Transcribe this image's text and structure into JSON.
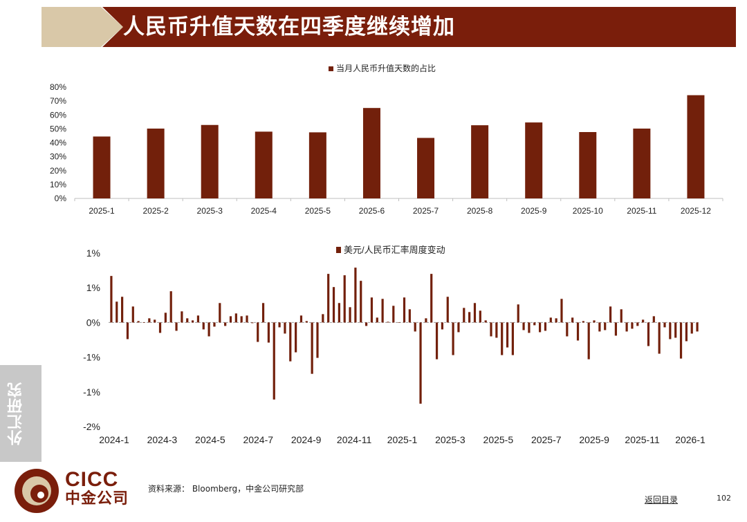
{
  "header": {
    "title": "人民币升值天数在四季度继续增加"
  },
  "colors": {
    "bar": "#72200b",
    "header": "#7a1e0b",
    "chevron": "#d9c8a8",
    "axis": "#bfbfbf"
  },
  "chart_data": [
    {
      "type": "bar",
      "title": "",
      "legend": {
        "label": "当月人民币升值天数的占比",
        "position": "top"
      },
      "categories": [
        "2025-1",
        "2025-2",
        "2025-3",
        "2025-4",
        "2025-5",
        "2025-6",
        "2025-7",
        "2025-8",
        "2025-9",
        "2025-10",
        "2025-11",
        "2025-12"
      ],
      "series": [
        {
          "name": "当月人民币升值天数的占比",
          "values": [
            44.5,
            50.2,
            52.8,
            48.0,
            47.5,
            65.0,
            43.5,
            52.6,
            54.6,
            47.7,
            50.2,
            74.2
          ]
        }
      ],
      "yticks": [
        "0%",
        "10%",
        "20%",
        "30%",
        "40%",
        "50%",
        "60%",
        "70%",
        "80%"
      ],
      "ylim": [
        0,
        80
      ],
      "unit": "%"
    },
    {
      "type": "bar",
      "title": "",
      "legend": {
        "label": "美元/人民币汇率周度变动",
        "position": "top"
      },
      "xticks": [
        "2024-1",
        "2024-3",
        "2024-5",
        "2024-7",
        "2024-9",
        "2024-11",
        "2025-1",
        "2025-3",
        "2025-5",
        "2025-7",
        "2025-9",
        "2025-11",
        "2026-1"
      ],
      "yticks": [
        "1%",
        "1%",
        "0%",
        "-1%",
        "-1%",
        "-2%"
      ],
      "ylim": [
        -1.5,
        1.0
      ],
      "unit": "%",
      "series": [
        {
          "name": "美元/人民币汇率周度变动",
          "values": [
            0.67,
            0.3,
            0.37,
            -0.24,
            0.23,
            0.02,
            0.0,
            0.06,
            0.04,
            -0.15,
            0.14,
            0.45,
            -0.12,
            0.16,
            0.06,
            0.03,
            0.1,
            -0.1,
            -0.2,
            -0.06,
            0.28,
            -0.05,
            0.09,
            0.13,
            0.09,
            0.1,
            -0.01,
            -0.28,
            0.28,
            -0.29,
            -1.11,
            -0.07,
            -0.16,
            -0.56,
            -0.43,
            0.1,
            0.02,
            -0.74,
            -0.51,
            0.12,
            0.7,
            0.51,
            0.28,
            0.68,
            0.22,
            0.79,
            0.6,
            -0.05,
            0.36,
            0.07,
            0.34,
            0.01,
            0.24,
            0.0,
            0.36,
            0.19,
            -0.13,
            -1.17,
            0.06,
            0.7,
            -0.53,
            -0.1,
            0.37,
            -0.47,
            -0.14,
            0.21,
            0.15,
            0.28,
            0.17,
            0.03,
            -0.2,
            -0.22,
            -0.47,
            -0.36,
            -0.47,
            0.26,
            -0.11,
            -0.15,
            -0.04,
            -0.14,
            -0.12,
            0.07,
            0.06,
            0.34,
            -0.2,
            0.07,
            -0.26,
            0.02,
            -0.53,
            0.03,
            -0.13,
            -0.11,
            0.23,
            -0.19,
            0.19,
            -0.13,
            -0.09,
            -0.05,
            0.04,
            -0.34,
            0.09,
            -0.45,
            -0.07,
            -0.24,
            -0.22,
            -0.52,
            -0.27,
            -0.16,
            -0.13
          ]
        }
      ]
    }
  ],
  "sidebar": {
    "label": "外汇研究"
  },
  "footer": {
    "logo_en": "CICC",
    "logo_cn": "中金公司",
    "source": "资料来源： Bloomberg，中金公司研究部",
    "back_link": "返回目录",
    "page_number": "102"
  }
}
